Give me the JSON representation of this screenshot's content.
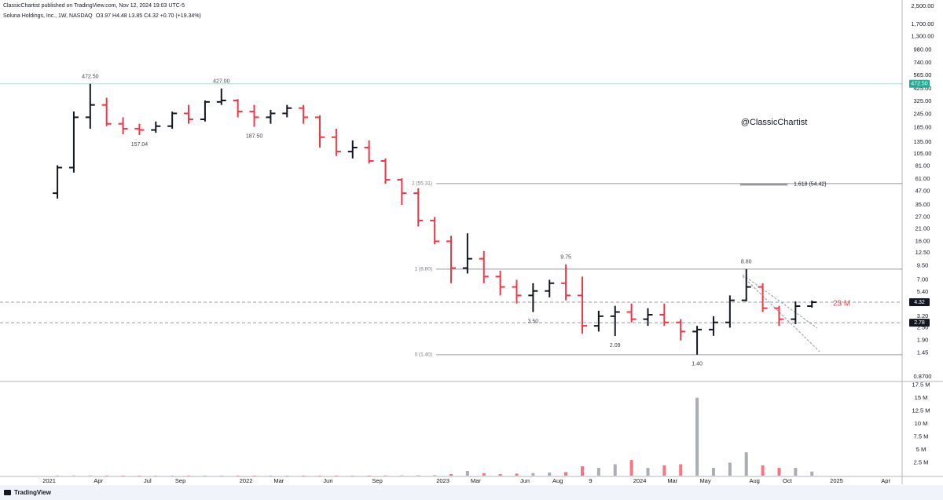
{
  "header": {
    "published": "ClassicChartist published on TradingView.com, Nov 12, 2024 19:03 UTC-5",
    "brand": "TradingView"
  },
  "chart_data": {
    "type": "ohlc",
    "symbol": "Soluna Holdings, Inc., 1W, NASDAQ",
    "quote": "O3.97 H4.48 L3.85 C4.32 +0.70 (+19.34%)",
    "watermark": "@ClassicChartist",
    "up_color": "#131722",
    "down_color": "#f23645",
    "log_scale": true,
    "grid": false,
    "x": [
      "2021-01",
      "2021-02",
      "2021-03",
      "2021-04",
      "2021-05",
      "2021-06",
      "2021-07",
      "2021-08",
      "2021-09",
      "2021-10",
      "2021-11",
      "2021-12",
      "2022-01",
      "2022-02",
      "2022-03",
      "2022-04",
      "2022-05",
      "2022-06",
      "2022-07",
      "2022-08",
      "2022-09",
      "2022-10",
      "2022-11",
      "2022-12",
      "2023-01",
      "2023-02",
      "2023-03",
      "2023-04",
      "2023-05",
      "2023-06",
      "2023-07",
      "2023-08",
      "2023-09",
      "2023-10",
      "2023-11",
      "2023-12",
      "2024-01",
      "2024-02",
      "2024-03",
      "2024-04",
      "2024-05",
      "2024-06",
      "2024-07",
      "2024-08",
      "2024-09",
      "2024-10",
      "2024-11"
    ],
    "open": [
      45,
      78,
      230,
      300,
      200,
      180,
      175,
      190,
      250,
      220,
      320,
      330,
      260,
      230,
      250,
      280,
      230,
      150,
      110,
      120,
      90,
      60,
      45,
      25,
      16,
      9,
      11,
      7.5,
      6,
      5,
      5.5,
      6.5,
      5,
      2.6,
      3.2,
      3.5,
      3,
      3.3,
      2.8,
      2.3,
      2.4,
      2.8,
      4.5,
      6,
      3.8,
      3,
      3.97
    ],
    "high": [
      82,
      260,
      472.5,
      350,
      230,
      200,
      210,
      260,
      300,
      330,
      427,
      340,
      300,
      270,
      300,
      300,
      240,
      180,
      140,
      140,
      95,
      62,
      50,
      27,
      18,
      19,
      13,
      8.5,
      7,
      6.5,
      7,
      9.75,
      7.5,
      3.6,
      4,
      4.2,
      3.8,
      4.2,
      3,
      2.6,
      3.2,
      5,
      8.8,
      6.5,
      4,
      4.4,
      4.48
    ],
    "low": [
      40,
      70,
      180,
      190,
      160,
      157.04,
      165,
      180,
      200,
      210,
      300,
      230,
      187.5,
      200,
      230,
      200,
      120,
      100,
      95,
      85,
      55,
      35,
      22,
      15,
      6.5,
      8,
      6.5,
      5,
      4.2,
      3.5,
      4.8,
      4.5,
      2.2,
      2.3,
      2.09,
      2.8,
      2.6,
      2.6,
      1.9,
      1.4,
      2.1,
      2.5,
      4.4,
      3.5,
      2.6,
      2.7,
      3.85
    ],
    "close": [
      78,
      230,
      300,
      200,
      180,
      175,
      190,
      250,
      220,
      320,
      330,
      260,
      230,
      250,
      280,
      230,
      150,
      110,
      120,
      90,
      60,
      45,
      25,
      16,
      9,
      11,
      7.5,
      6,
      5,
      5.5,
      6.5,
      5,
      2.6,
      3.2,
      3.5,
      3,
      3.3,
      2.8,
      2.3,
      2.4,
      2.8,
      4.5,
      6,
      3.8,
      3,
      3.97,
      4.32
    ],
    "volume": [
      30000,
      60000,
      80000,
      40000,
      20000,
      15000,
      15000,
      25000,
      20000,
      20000,
      30000,
      20000,
      20000,
      15000,
      15000,
      20000,
      30000,
      25000,
      20000,
      25000,
      40000,
      60000,
      80000,
      100000,
      300000,
      900000,
      500000,
      300000,
      400000,
      500000,
      600000,
      700000,
      1800000,
      1500000,
      2200000,
      3000000,
      1500000,
      2000000,
      2200000,
      15000000,
      1500000,
      2500000,
      4500000,
      2000000,
      1500000,
      1500000,
      800000
    ],
    "xlim": [
      "2020-10",
      "2025-05"
    ],
    "xticks": [
      {
        "value": "2021-01",
        "label": "2021"
      },
      {
        "value": "2021-04",
        "label": "Apr"
      },
      {
        "value": "2021-07",
        "label": "Jul"
      },
      {
        "value": "2021-09",
        "label": "Sep"
      },
      {
        "value": "2022-01",
        "label": "2022"
      },
      {
        "value": "2022-03",
        "label": "Mar"
      },
      {
        "value": "2022-06",
        "label": "Jun"
      },
      {
        "value": "2022-09",
        "label": "Sep"
      },
      {
        "value": "2023-01",
        "label": "2023"
      },
      {
        "value": "2023-03",
        "label": "Mar"
      },
      {
        "value": "2023-06",
        "label": "Jun"
      },
      {
        "value": "2023-08",
        "label": "Aug"
      },
      {
        "value": "2023-10",
        "label": "9"
      },
      {
        "value": "2024-01",
        "label": "2024"
      },
      {
        "value": "2024-03",
        "label": "Mar"
      },
      {
        "value": "2024-05",
        "label": "May"
      },
      {
        "value": "2024-08",
        "label": "Aug"
      },
      {
        "value": "2024-10",
        "label": "Oct"
      },
      {
        "value": "2025-01",
        "label": "2025"
      },
      {
        "value": "2025-04",
        "label": "Apr"
      }
    ],
    "ylim": [
      0.8,
      2860
    ],
    "yticks": [
      {
        "value": 2500,
        "label": "2,500.00"
      },
      {
        "value": 1700,
        "label": "1,700.00"
      },
      {
        "value": 1300,
        "label": "1,300.00"
      },
      {
        "value": 980,
        "label": "980.00"
      },
      {
        "value": 740,
        "label": "740.00"
      },
      {
        "value": 565,
        "label": "565.00"
      },
      {
        "value": 425,
        "label": "425.00"
      },
      {
        "value": 325,
        "label": "325.00"
      },
      {
        "value": 245,
        "label": "245.00"
      },
      {
        "value": 185,
        "label": "185.00"
      },
      {
        "value": 135,
        "label": "135.00"
      },
      {
        "value": 105,
        "label": "105.00"
      },
      {
        "value": 81,
        "label": "81.00"
      },
      {
        "value": 61,
        "label": "61.00"
      },
      {
        "value": 47,
        "label": "47.00"
      },
      {
        "value": 35,
        "label": "35.00"
      },
      {
        "value": 27,
        "label": "27.00"
      },
      {
        "value": 21,
        "label": "21.00"
      },
      {
        "value": 16,
        "label": "16.00"
      },
      {
        "value": 12.5,
        "label": "12.50"
      },
      {
        "value": 9.5,
        "label": "9.50"
      },
      {
        "value": 7,
        "label": "7.00"
      },
      {
        "value": 5.4,
        "label": "5.40"
      },
      {
        "value": 3.2,
        "label": "3.20"
      },
      {
        "value": 2.5,
        "label": "2.50"
      },
      {
        "value": 1.9,
        "label": "1.90"
      },
      {
        "value": 1.45,
        "label": "1.45"
      },
      {
        "value": 0.87,
        "label": "0.8700"
      }
    ],
    "vol_ylim": [
      0,
      18000000
    ],
    "vol_yticks": [
      {
        "value": 2500000,
        "label": "2.5 M"
      },
      {
        "value": 5000000,
        "label": "5 M"
      },
      {
        "value": 7500000,
        "label": "7.5 M"
      },
      {
        "value": 10000000,
        "label": "10 M"
      },
      {
        "value": 12500000,
        "label": "12.5 M"
      },
      {
        "value": 15000000,
        "label": "15 M"
      },
      {
        "value": 17500000,
        "label": "17.5 M"
      }
    ],
    "annotations": [
      {
        "x": "2021-03",
        "value": 472.5,
        "label": "472.50"
      },
      {
        "x": "2021-11",
        "value": 427,
        "label": "427.00"
      },
      {
        "x": "2021-06",
        "value": 157.04,
        "label": "157.04"
      },
      {
        "x": "2022-01",
        "value": 187.5,
        "label": "187.50"
      },
      {
        "x": "2023-08",
        "value": 9.75,
        "label": "9.75"
      },
      {
        "x": "2023-06",
        "value": 3.5,
        "label": "3.50"
      },
      {
        "x": "2023-11",
        "value": 2.09,
        "label": "2.09"
      },
      {
        "x": "2024-04",
        "value": 1.4,
        "label": "1.40"
      },
      {
        "x": "2024-07",
        "value": 8.8,
        "label": "8.80"
      }
    ],
    "levels": [
      {
        "value": 472.5,
        "label": "472.50",
        "color": "#22ab94",
        "style": "solid"
      },
      {
        "value": 4.32,
        "label": "4.32",
        "color": "#131722",
        "style": "dashed"
      },
      {
        "value": 2.78,
        "label": "2.78",
        "color": "#131722",
        "style": "dashed"
      }
    ],
    "fib": [
      {
        "value": 55.31,
        "label": "2 (55.31)"
      },
      {
        "value": 8.8,
        "label": "1 (8.80)"
      },
      {
        "value": 1.4,
        "label": "0 (1.40)"
      }
    ],
    "fib_extension": {
      "value": 54.42,
      "label": "1.618 (54.42)"
    },
    "volume_note": "23 M"
  }
}
